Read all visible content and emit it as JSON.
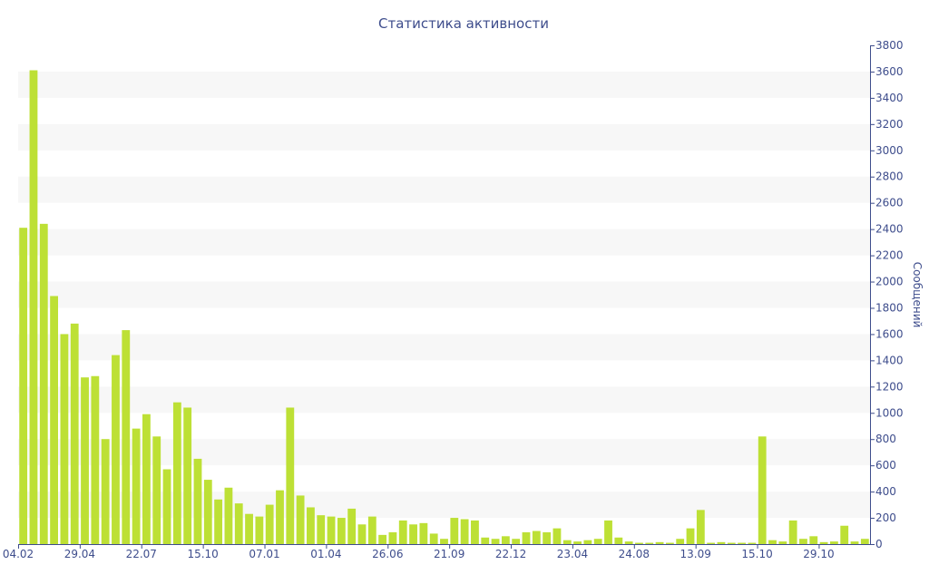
{
  "chart_data": {
    "type": "bar",
    "title": "Статистика активности",
    "xlabel": "",
    "ylabel": "Сообщений",
    "ylim": [
      0,
      3800
    ],
    "y_ticks": [
      0,
      200,
      400,
      600,
      800,
      1000,
      1200,
      1400,
      1600,
      1800,
      2000,
      2200,
      2400,
      2600,
      2800,
      3000,
      3200,
      3400,
      3600,
      3800
    ],
    "y_axis_position": "right",
    "x_tick_labels": [
      {
        "index": 0,
        "label": "04.02"
      },
      {
        "index": 6,
        "label": "29.04"
      },
      {
        "index": 12,
        "label": "22.07"
      },
      {
        "index": 18,
        "label": "15.10"
      },
      {
        "index": 24,
        "label": "07.01"
      },
      {
        "index": 30,
        "label": "01.04"
      },
      {
        "index": 36,
        "label": "26.06"
      },
      {
        "index": 42,
        "label": "21.09"
      },
      {
        "index": 48,
        "label": "22.12"
      },
      {
        "index": 54,
        "label": "23.04"
      },
      {
        "index": 60,
        "label": "24.08"
      },
      {
        "index": 66,
        "label": "13.09"
      },
      {
        "index": 72,
        "label": "15.10"
      },
      {
        "index": 78,
        "label": "29.10"
      }
    ],
    "grid_bands": true,
    "bar_color": "#bde035",
    "values": [
      2410,
      3610,
      2440,
      1890,
      1600,
      1680,
      1270,
      1280,
      800,
      1440,
      1630,
      880,
      990,
      820,
      570,
      1080,
      1040,
      650,
      490,
      340,
      430,
      310,
      230,
      210,
      300,
      410,
      1040,
      370,
      280,
      220,
      210,
      200,
      270,
      150,
      210,
      70,
      90,
      180,
      150,
      160,
      80,
      40,
      200,
      190,
      180,
      50,
      40,
      60,
      40,
      90,
      100,
      90,
      120,
      30,
      20,
      30,
      40,
      180,
      50,
      20,
      10,
      10,
      15,
      10,
      40,
      120,
      260,
      10,
      15,
      10,
      10,
      10,
      820,
      30,
      20,
      180,
      40,
      60,
      15,
      20,
      140,
      20,
      40
    ]
  }
}
